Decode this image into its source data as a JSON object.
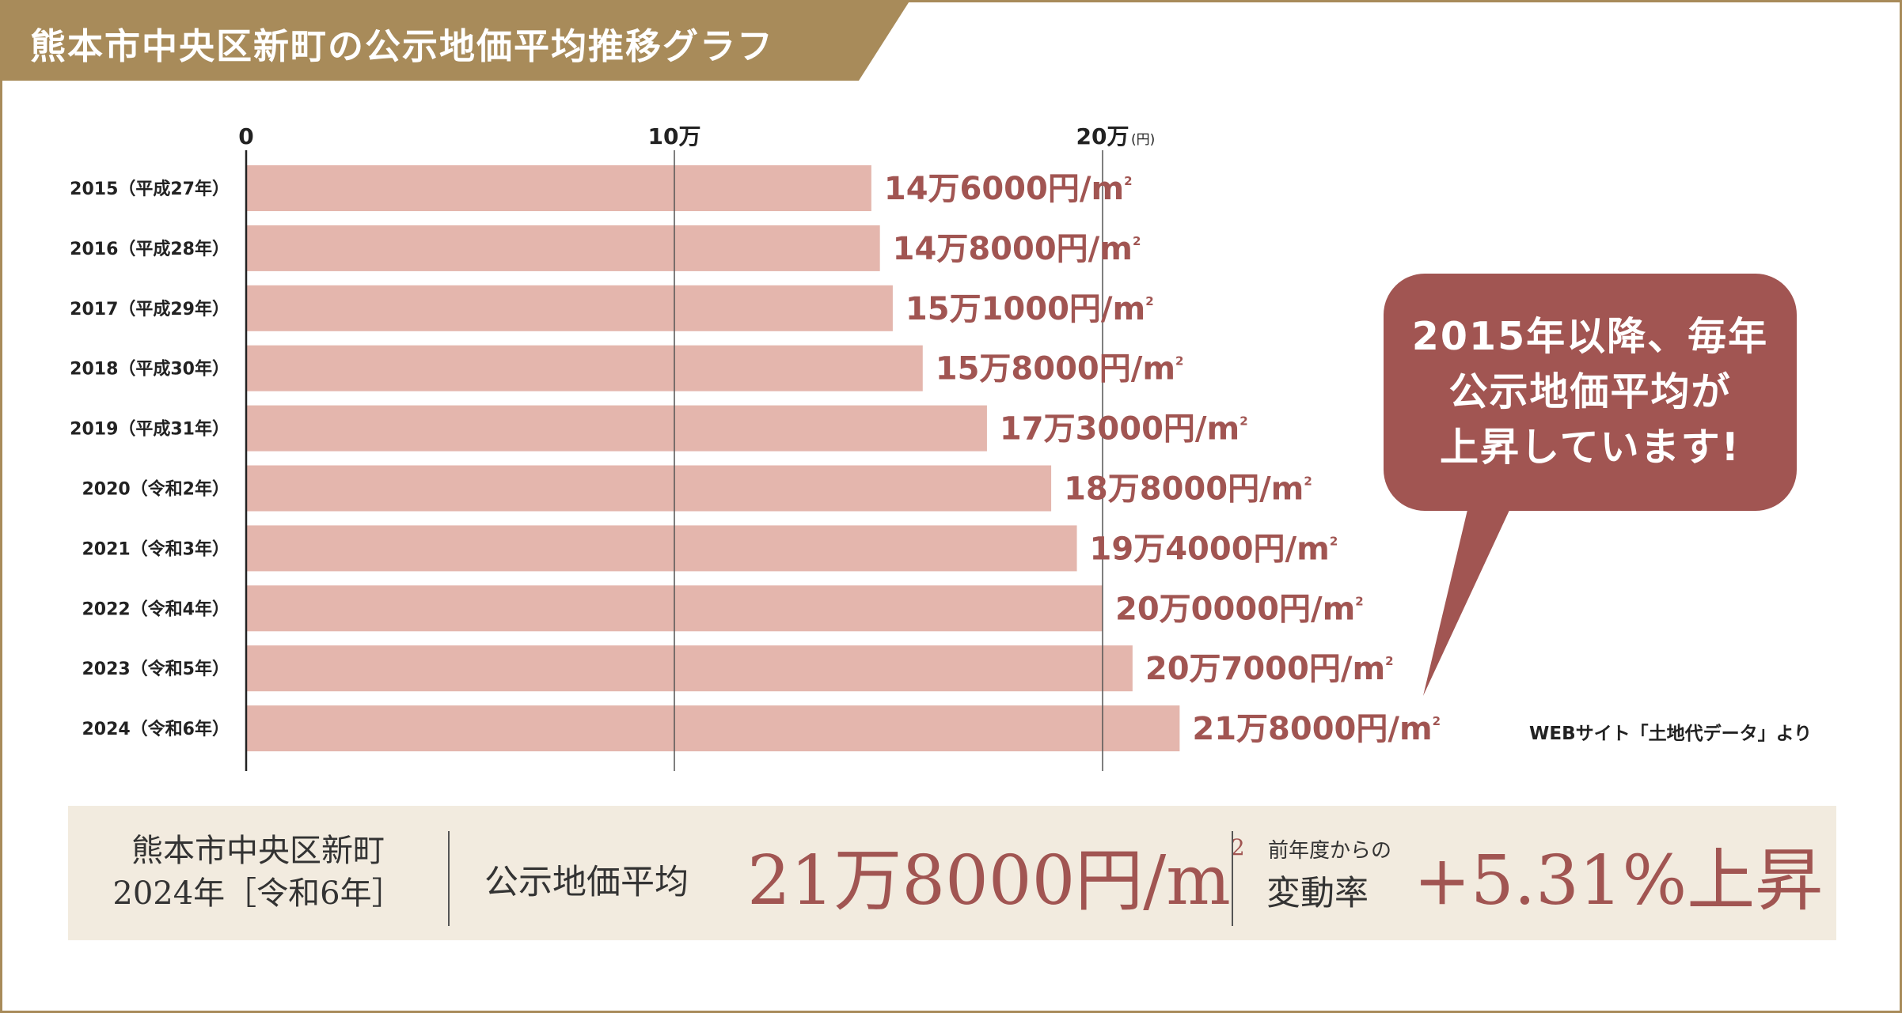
{
  "title": "熊本市中央区新町の公示地価平均推移グラフ",
  "chart_data": {
    "type": "bar",
    "orientation": "horizontal",
    "categories": [
      "2015（平成27年）",
      "2016（平成28年）",
      "2017（平成29年）",
      "2018（平成30年）",
      "2019（平成31年）",
      "2020（令和2年）",
      "2021（令和3年）",
      "2022（令和4年）",
      "2023（令和5年）",
      "2024（令和6年）"
    ],
    "values": [
      146000,
      148000,
      151000,
      158000,
      173000,
      188000,
      194000,
      200000,
      207000,
      218000
    ],
    "value_labels": [
      "14万6000円/m",
      "14万8000円/m",
      "15万1000円/m",
      "15万8000円/m",
      "17万3000円/m",
      "18万8000円/m",
      "19万4000円/m",
      "20万0000円/m",
      "20万7000円/m",
      "21万8000円/m"
    ],
    "value_label_sup": "2",
    "x_ticks": [
      {
        "value": 0,
        "label": "0"
      },
      {
        "value": 100000,
        "label": "10万"
      },
      {
        "value": 200000,
        "label": "20万"
      }
    ],
    "x_unit": "(円)",
    "xlim": [
      0,
      200000
    ],
    "grid": true,
    "bar_color": "#e4b6ad",
    "label_color": "#a15552"
  },
  "callout": {
    "lines": [
      "2015年以降、毎年",
      "公示地価平均が",
      "上昇しています!"
    ],
    "color": "#a15552"
  },
  "source": "WEBサイト「土地代データ」より",
  "summary": {
    "area_line1": "熊本市中央区新町",
    "area_line2": "2024年［令和6年］",
    "avg_label": "公示地価平均",
    "avg_value": "21万8000円/m",
    "avg_sup": "2",
    "change_small": "前年度からの",
    "change_label": "変動率",
    "change_value": "+5.31%上昇"
  },
  "colors": {
    "header_band": "#a88b5a",
    "summary_bg": "#f2ebdf",
    "accent": "#a15552"
  }
}
